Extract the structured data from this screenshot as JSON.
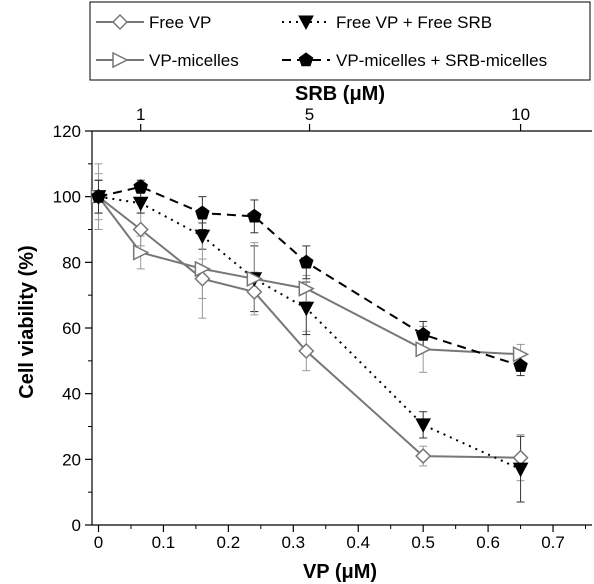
{
  "chart_data": {
    "type": "line",
    "xlabel": "VP (μM)",
    "ylabel": "Cell viability (%)",
    "top_axis_label": "SRB (μM)",
    "x_ticks": [
      "0",
      "0.1",
      "0.2",
      "0.3",
      "0.4",
      "0.5",
      "0.6",
      "0.7"
    ],
    "y_ticks": [
      "0",
      "20",
      "40",
      "60",
      "80",
      "100",
      "120"
    ],
    "top_ticks": [
      {
        "label": "1",
        "vp": 0.065
      },
      {
        "label": "5",
        "vp": 0.325
      },
      {
        "label": "10",
        "vp": 0.65
      }
    ],
    "xlim": [
      -0.01,
      0.76
    ],
    "ylim": [
      0,
      120
    ],
    "legend_position": "top",
    "series": [
      {
        "name": "Free VP",
        "marker": "diamond-open",
        "line": "solid",
        "color": "#777777",
        "x": [
          0,
          0.065,
          0.16,
          0.24,
          0.32,
          0.5,
          0.65
        ],
        "y": [
          100,
          90,
          75,
          71,
          53,
          21,
          20.5
        ],
        "err": [
          7,
          5,
          6,
          6,
          6,
          3,
          7
        ]
      },
      {
        "name": "Free VP + Free SRB",
        "marker": "triangle-down-filled",
        "line": "dotted",
        "color": "#000000",
        "x": [
          0,
          0.065,
          0.16,
          0.24,
          0.32,
          0.5,
          0.65
        ],
        "y": [
          100,
          98,
          88,
          75,
          66,
          30.5,
          17
        ],
        "err": [
          5,
          3,
          4,
          10,
          8,
          4,
          10
        ]
      },
      {
        "name": "VP-micelles",
        "marker": "triangle-right-open",
        "line": "solid",
        "color": "#777777",
        "x": [
          0,
          0.065,
          0.16,
          0.24,
          0.32,
          0.5,
          0.65
        ],
        "y": [
          100,
          83,
          78,
          75,
          72,
          53.5,
          52
        ],
        "err": [
          10,
          5,
          15,
          11,
          4,
          7,
          3
        ]
      },
      {
        "name": "VP-micelles + SRB-micelles",
        "marker": "pentagon-filled",
        "line": "dashed",
        "color": "#000000",
        "x": [
          0,
          0.065,
          0.16,
          0.24,
          0.32,
          0.5,
          0.65
        ],
        "y": [
          100,
          103,
          95,
          94,
          80,
          58,
          48.5
        ],
        "err": [
          5,
          2,
          5,
          5,
          5,
          4,
          3
        ]
      }
    ]
  }
}
